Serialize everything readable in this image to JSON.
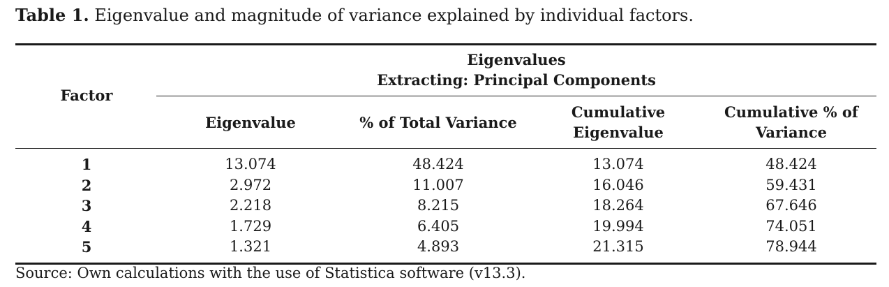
{
  "caption": {
    "label": "Table 1.",
    "text": "Eigenvalue and magnitude of variance explained by individual factors."
  },
  "table": {
    "factor_header": "Factor",
    "group_header_line1": "Eigenvalues",
    "group_header_line2": "Extracting: Principal Components",
    "columns": [
      {
        "line1": "Eigenvalue",
        "line2": ""
      },
      {
        "line1": "% of Total Variance",
        "line2": ""
      },
      {
        "line1": "Cumulative",
        "line2": "Eigenvalue"
      },
      {
        "line1": "Cumulative % of",
        "line2": "Variance"
      }
    ],
    "rows": [
      {
        "factor": "1",
        "eigenvalue": "13.074",
        "pct_total": "48.424",
        "cum_eigen": "13.074",
        "cum_pct": "48.424"
      },
      {
        "factor": "2",
        "eigenvalue": "2.972",
        "pct_total": "11.007",
        "cum_eigen": "16.046",
        "cum_pct": "59.431"
      },
      {
        "factor": "3",
        "eigenvalue": "2.218",
        "pct_total": "8.215",
        "cum_eigen": "18.264",
        "cum_pct": "67.646"
      },
      {
        "factor": "4",
        "eigenvalue": "1.729",
        "pct_total": "6.405",
        "cum_eigen": "19.994",
        "cum_pct": "74.051"
      },
      {
        "factor": "5",
        "eigenvalue": "1.321",
        "pct_total": "4.893",
        "cum_eigen": "21.315",
        "cum_pct": "78.944"
      }
    ]
  },
  "source": "Source: Own calculations with the use of Statistica software (v13.3)."
}
